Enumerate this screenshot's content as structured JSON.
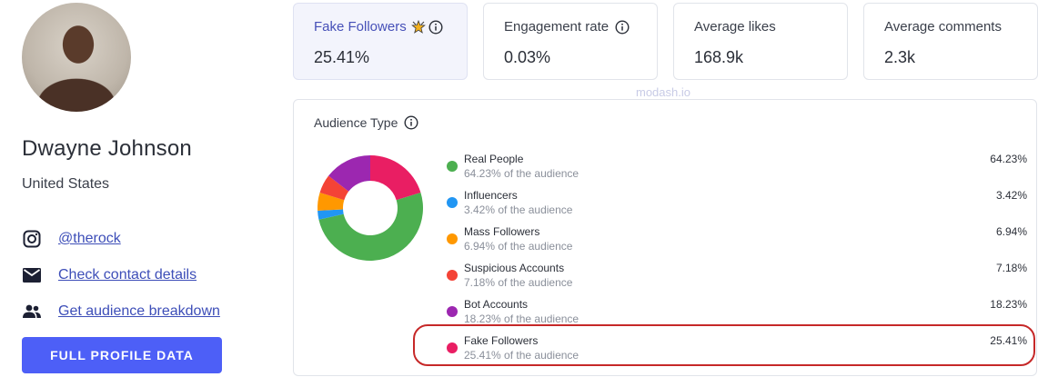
{
  "profile": {
    "name": "Dwayne Johnson",
    "country": "United States",
    "links": [
      {
        "icon": "instagram-icon",
        "label": "@therock"
      },
      {
        "icon": "mail-icon",
        "label": "Check contact details"
      },
      {
        "icon": "people-icon",
        "label": "Get audience breakdown"
      }
    ],
    "button_label": "FULL PROFILE DATA"
  },
  "stats": [
    {
      "label": "Fake Followers",
      "value": "25.41%",
      "has_star": true
    },
    {
      "label": "Engagement rate",
      "value": "0.03%"
    },
    {
      "label": "Average likes",
      "value": "168.9k"
    },
    {
      "label": "Average comments",
      "value": "2.3k"
    }
  ],
  "watermark": "modash.io",
  "audience": {
    "title": "Audience Type",
    "items": [
      {
        "name": "Real People",
        "sub": "64.23% of the audience",
        "pct": "64.23%",
        "value": 64.23,
        "color": "#4caf50"
      },
      {
        "name": "Influencers",
        "sub": "3.42% of the audience",
        "pct": "3.42%",
        "value": 3.42,
        "color": "#2196f3"
      },
      {
        "name": "Mass Followers",
        "sub": "6.94% of the audience",
        "pct": "6.94%",
        "value": 6.94,
        "color": "#ff9800"
      },
      {
        "name": "Suspicious Accounts",
        "sub": "7.18% of the audience",
        "pct": "7.18%",
        "value": 7.18,
        "color": "#f44336"
      },
      {
        "name": "Bot Accounts",
        "sub": "18.23% of the audience",
        "pct": "18.23%",
        "value": 18.23,
        "color": "#9c27b0"
      },
      {
        "name": "Fake Followers",
        "sub": "25.41% of the audience",
        "pct": "25.41%",
        "value": 25.41,
        "color": "#e91e63"
      }
    ]
  },
  "colors": {
    "accent": "#4d5ff7",
    "link": "#3d4eb8",
    "highlight": "#c62828"
  }
}
